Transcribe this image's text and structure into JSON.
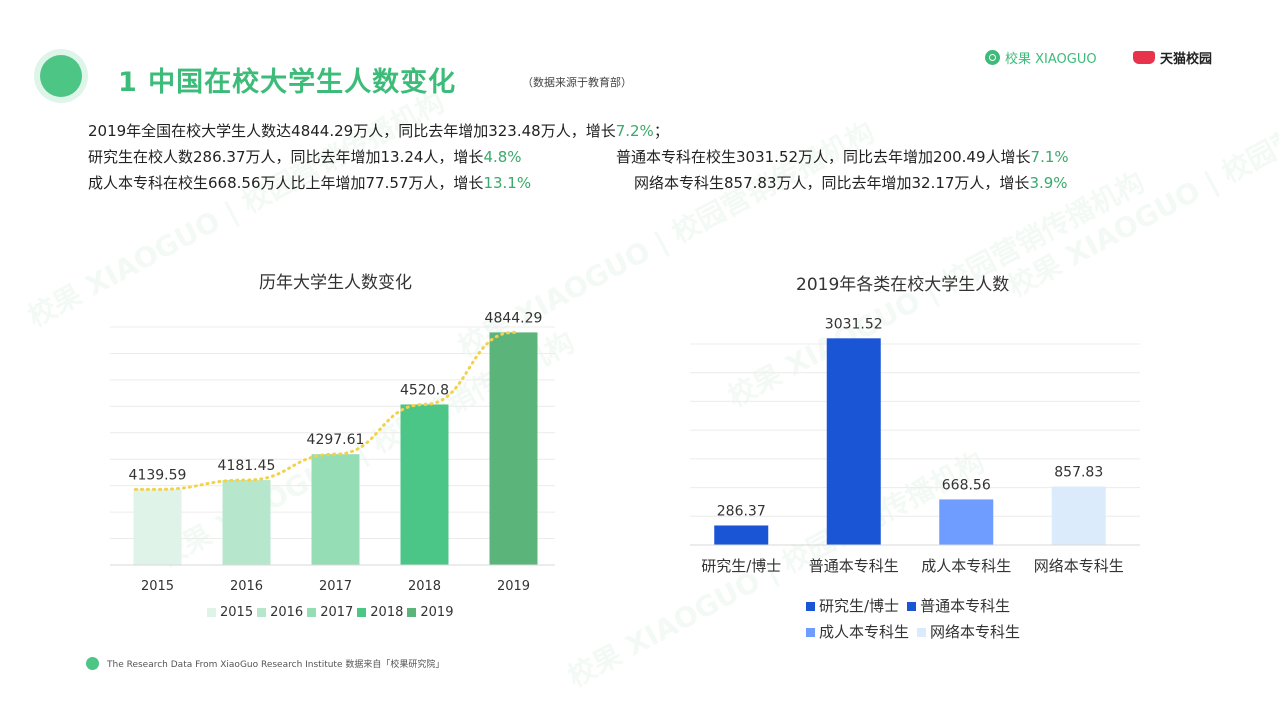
{
  "header": {
    "title": "1 中国在校大学生人数变化",
    "note": "（数据来源于教育部）",
    "brand_xiaoguo": "校果 XIAOGUO",
    "brand_tmall": "天猫校园"
  },
  "summary": {
    "line1_text": "2019年全国在校大学生人数达4844.29万人，同比去年增加323.48万人，增长",
    "line1_pct": "7.2%",
    "line1_end": "；",
    "line2a_text": "研究生在校人数286.37万人，同比去年增加13.24人，增长",
    "line2a_pct": "4.8%",
    "line2b_text": "普通本专科在校生3031.52万人，同比去年增加200.49人增长",
    "line2b_pct": "7.1%",
    "line3a_text": "成人本专科在校生668.56万人比上年增加77.57万人，增长",
    "line3a_pct": "13.1%",
    "line3b_text": "网络本专科生857.83万人，同比去年增加32.17万人，增长",
    "line3b_pct": "3.9%"
  },
  "footer": {
    "text": "The Research Data  From XiaoGuo Research Institute 数据来自「校果研究院」"
  },
  "watermark_text": "校果 XIAOGUO | 校园营销传播机构",
  "chart_data": [
    {
      "type": "bar",
      "title": "历年大学生人数变化",
      "categories": [
        "2015",
        "2016",
        "2017",
        "2018",
        "2019"
      ],
      "values": [
        4139.59,
        4181.45,
        4297.61,
        4520.8,
        4844.29
      ],
      "value_labels": [
        "4139.59",
        "4181.45",
        "4297.61",
        "4520.8",
        "4844.29"
      ],
      "colors": [
        "#dff3e8",
        "#b6e7cc",
        "#94ddb5",
        "#4cc687",
        "#5bb47a"
      ],
      "legend": [
        "2015",
        "2016",
        "2017",
        "2018",
        "2019"
      ],
      "legend_placement": "bottom",
      "trendline": true,
      "trendline_color": "#f3d24a",
      "ylim": [
        3800,
        4900
      ],
      "grid": true
    },
    {
      "type": "bar",
      "title": "2019年各类在校大学生人数",
      "categories": [
        "研究生/博士",
        "普通本专科生",
        "成人本专科生",
        "网络本专科生"
      ],
      "values": [
        286.37,
        3031.52,
        668.56,
        857.83
      ],
      "value_labels": [
        "286.37",
        "3031.52",
        "668.56",
        "857.83"
      ],
      "colors": [
        "#1a55d6",
        "#1a55d6",
        "#6e9dff",
        "#dcebfb"
      ],
      "legend": [
        "研究生/博士",
        "普通本专科生",
        "成人本专科生",
        "网络本专科生"
      ],
      "legend_placement": "bottom",
      "ylim": [
        0,
        3300
      ],
      "grid": true
    }
  ]
}
